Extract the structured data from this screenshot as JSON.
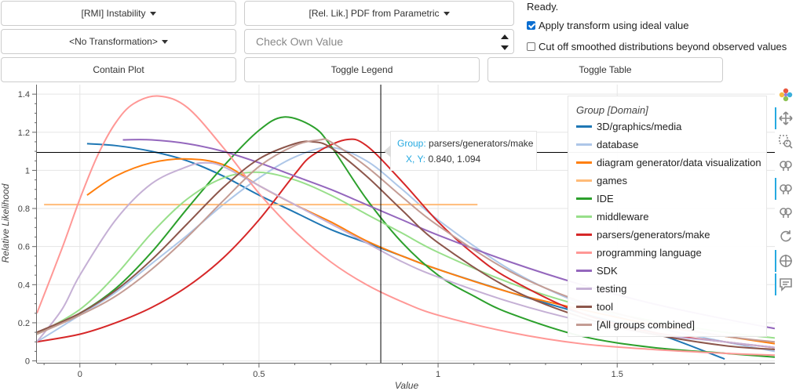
{
  "controls": {
    "metric_label": "[RMI] Instability",
    "plot_type_label": "[Rel. Lik.] PDF from Parametric",
    "transform_label": "<No Transformation>",
    "check_value_placeholder": "Check Own Value",
    "contain_plot_label": "Contain Plot",
    "toggle_legend_label": "Toggle Legend",
    "toggle_table_label": "Toggle Table",
    "status_text": "Ready.",
    "apply_transform_label": "Apply transform using ideal value",
    "apply_transform_checked": true,
    "cutoff_label": "Cut off smoothed distributions beyond observed values",
    "cutoff_checked": false
  },
  "toolbar": {
    "icons": [
      "bokeh-logo-icon",
      "pan-icon",
      "box-zoom-icon",
      "wheel-zoom-icon",
      "wheel-zoom-x-icon",
      "wheel-zoom-y-icon",
      "reset-icon",
      "crosshair-icon",
      "hover-icon"
    ]
  },
  "tooltip": {
    "group_key": "Group:",
    "group_value": "parsers/generators/make",
    "xy_key": "X, Y:",
    "xy_value": "0.840, 1.094"
  },
  "crosshair": {
    "x": 0.84,
    "y": 1.094
  },
  "chart_data": {
    "type": "line",
    "xlabel": "Value",
    "ylabel": "Relative Likelihood",
    "xlim": [
      -0.12,
      1.94
    ],
    "ylim": [
      -0.01,
      1.45
    ],
    "x_ticks": [
      0,
      0.5,
      1,
      1.5
    ],
    "x_tick_labels": [
      "0",
      "0.5",
      "1",
      "1.5"
    ],
    "y_ticks": [
      0,
      0.2,
      0.4,
      0.6,
      0.8,
      1,
      1.2,
      1.4
    ],
    "y_tick_labels": [
      "0",
      "0.2",
      "0.4",
      "0.6",
      "0.8",
      "1",
      "1.2",
      "1.4"
    ],
    "grid": true,
    "legend_title": "Group [Domain]",
    "legend_position": "top-right",
    "series": [
      {
        "name": "3D/graphics/media",
        "color": "#1f77b4",
        "x": [
          0.02,
          0.1,
          0.2,
          0.3,
          0.4,
          0.5,
          0.6,
          0.7,
          0.8,
          0.9,
          1.0,
          1.2,
          1.4,
          1.6,
          1.8
        ],
        "y": [
          1.14,
          1.13,
          1.1,
          1.05,
          0.97,
          0.87,
          0.78,
          0.69,
          0.62,
          0.55,
          0.48,
          0.36,
          0.25,
          0.15,
          0.01
        ]
      },
      {
        "name": "database",
        "color": "#aec7e8",
        "x": [
          -0.12,
          0.0,
          0.1,
          0.2,
          0.3,
          0.4,
          0.5,
          0.6,
          0.7,
          0.8,
          0.9,
          1.0,
          1.2,
          1.4,
          1.6,
          1.8,
          1.94
        ],
        "y": [
          0.1,
          0.24,
          0.36,
          0.51,
          0.66,
          0.82,
          0.96,
          1.07,
          1.12,
          1.05,
          0.9,
          0.74,
          0.48,
          0.3,
          0.18,
          0.1,
          0.05
        ]
      },
      {
        "name": "diagram generator/data visualization",
        "color": "#ff7f0e",
        "x": [
          0.02,
          0.1,
          0.2,
          0.3,
          0.4,
          0.5,
          0.6,
          0.7,
          0.8,
          0.9,
          1.0,
          1.2,
          1.4,
          1.6,
          1.8,
          1.94
        ],
        "y": [
          0.87,
          0.97,
          1.04,
          1.06,
          1.03,
          0.92,
          0.82,
          0.73,
          0.63,
          0.55,
          0.48,
          0.36,
          0.27,
          0.19,
          0.13,
          0.09
        ]
      },
      {
        "name": "games",
        "color": "#ffbb78",
        "x": [
          -0.1,
          1.11
        ],
        "y": [
          0.82,
          0.82
        ]
      },
      {
        "name": "IDE",
        "color": "#2ca02c",
        "x": [
          -0.12,
          0.0,
          0.1,
          0.2,
          0.3,
          0.4,
          0.5,
          0.57,
          0.65,
          0.7,
          0.8,
          0.9,
          1.0,
          1.1,
          1.2,
          1.4,
          1.6,
          1.8,
          1.94
        ],
        "y": [
          0.14,
          0.25,
          0.38,
          0.57,
          0.8,
          1.02,
          1.21,
          1.28,
          1.23,
          1.13,
          0.85,
          0.62,
          0.45,
          0.34,
          0.25,
          0.13,
          0.07,
          0.04,
          0.02
        ]
      },
      {
        "name": "middleware",
        "color": "#98df8a",
        "x": [
          -0.12,
          0.0,
          0.1,
          0.2,
          0.3,
          0.4,
          0.5,
          0.6,
          0.7,
          0.8,
          0.9,
          1.0,
          1.2,
          1.4,
          1.6,
          1.8,
          1.94
        ],
        "y": [
          0.14,
          0.27,
          0.45,
          0.67,
          0.85,
          0.96,
          0.99,
          0.95,
          0.87,
          0.77,
          0.67,
          0.57,
          0.41,
          0.29,
          0.21,
          0.15,
          0.12
        ]
      },
      {
        "name": "parsers/generators/make",
        "color": "#d62728",
        "x": [
          -0.12,
          0.0,
          0.1,
          0.2,
          0.3,
          0.4,
          0.5,
          0.6,
          0.65,
          0.74,
          0.8,
          0.9,
          1.0,
          1.1,
          1.2,
          1.4,
          1.6,
          1.8,
          1.94
        ],
        "y": [
          0.1,
          0.14,
          0.2,
          0.28,
          0.39,
          0.54,
          0.74,
          0.98,
          1.08,
          1.16,
          1.13,
          0.94,
          0.73,
          0.56,
          0.43,
          0.25,
          0.15,
          0.1,
          0.07
        ]
      },
      {
        "name": "programming language",
        "color": "#ff9896",
        "x": [
          -0.12,
          -0.05,
          0.0,
          0.05,
          0.1,
          0.15,
          0.22,
          0.3,
          0.4,
          0.5,
          0.6,
          0.7,
          0.8,
          0.9,
          1.0,
          1.2,
          1.4,
          1.6,
          1.8,
          1.94
        ],
        "y": [
          0.25,
          0.59,
          0.85,
          1.08,
          1.25,
          1.35,
          1.39,
          1.33,
          1.12,
          0.88,
          0.68,
          0.52,
          0.4,
          0.31,
          0.24,
          0.15,
          0.09,
          0.06,
          0.04,
          0.03
        ]
      },
      {
        "name": "SDK",
        "color": "#9467bd",
        "x": [
          0.12,
          0.2,
          0.3,
          0.4,
          0.5,
          0.6,
          0.7,
          0.8,
          0.9,
          1.0,
          1.2,
          1.4,
          1.6,
          1.8,
          1.94
        ],
        "y": [
          1.16,
          1.16,
          1.14,
          1.1,
          1.04,
          0.97,
          0.9,
          0.82,
          0.74,
          0.66,
          0.52,
          0.4,
          0.3,
          0.22,
          0.17
        ]
      },
      {
        "name": "testing",
        "color": "#c5b0d5",
        "x": [
          -0.12,
          -0.05,
          0.0,
          0.1,
          0.2,
          0.3,
          0.35,
          0.4,
          0.5,
          0.6,
          0.7,
          0.8,
          0.9,
          1.0,
          1.2,
          1.4,
          1.6,
          1.8,
          1.94
        ],
        "y": [
          0.1,
          0.27,
          0.45,
          0.74,
          0.93,
          1.02,
          1.04,
          1.02,
          0.92,
          0.82,
          0.72,
          0.62,
          0.52,
          0.44,
          0.31,
          0.21,
          0.14,
          0.1,
          0.07
        ]
      },
      {
        "name": "tool",
        "color": "#8c564b",
        "x": [
          -0.12,
          0.0,
          0.1,
          0.2,
          0.3,
          0.4,
          0.5,
          0.6,
          0.65,
          0.7,
          0.8,
          0.9,
          1.0,
          1.2,
          1.4,
          1.6,
          1.8,
          1.94
        ],
        "y": [
          0.15,
          0.25,
          0.37,
          0.53,
          0.72,
          0.91,
          1.06,
          1.14,
          1.15,
          1.12,
          0.97,
          0.79,
          0.62,
          0.38,
          0.23,
          0.14,
          0.08,
          0.06
        ]
      },
      {
        "name": "[All groups combined]",
        "color": "#c49c94",
        "x": [
          -0.12,
          0.0,
          0.1,
          0.2,
          0.3,
          0.4,
          0.5,
          0.6,
          0.67,
          0.7,
          0.8,
          0.9,
          1.0,
          1.2,
          1.4,
          1.6,
          1.8,
          1.94
        ],
        "y": [
          0.14,
          0.24,
          0.34,
          0.48,
          0.65,
          0.84,
          1.02,
          1.13,
          1.16,
          1.15,
          1.02,
          0.86,
          0.71,
          0.47,
          0.31,
          0.2,
          0.13,
          0.1
        ]
      }
    ]
  }
}
